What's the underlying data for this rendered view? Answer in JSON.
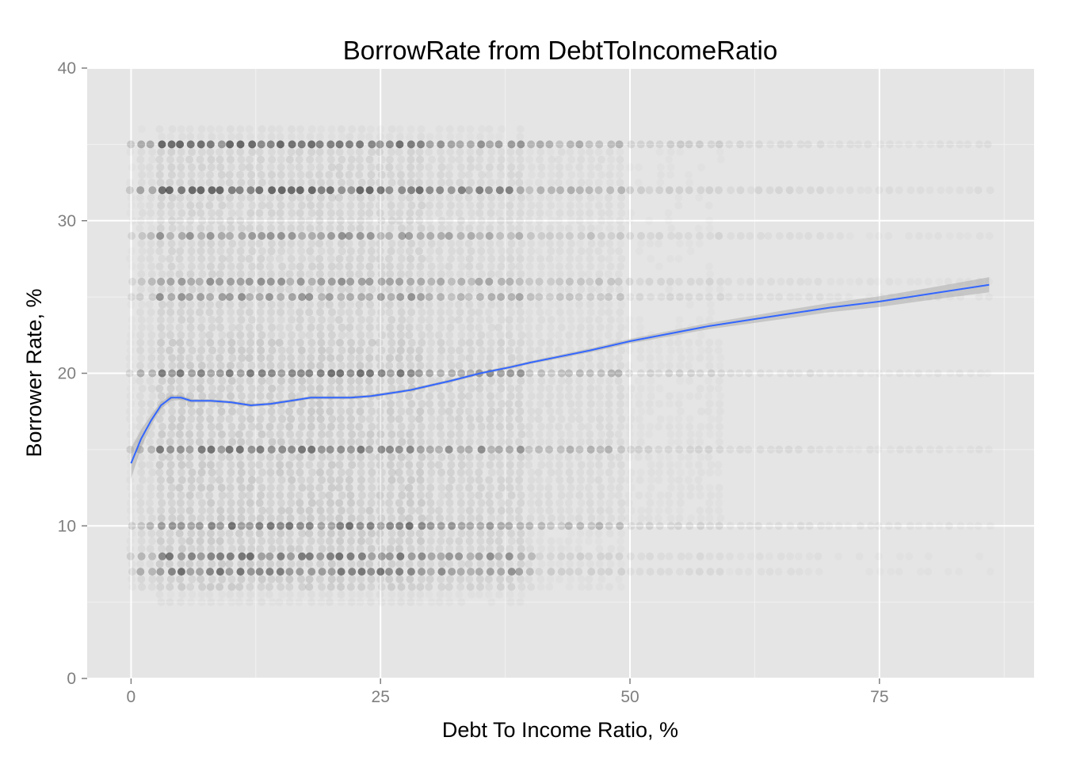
{
  "chart_data": {
    "type": "scatter",
    "title": "BorrowRate from DebtToIncomeRatio",
    "xlabel": "Debt To Income Ratio, %",
    "ylabel": "Borrower Rate, %",
    "xlim": [
      -4.4,
      90.5
    ],
    "ylim": [
      0,
      40
    ],
    "x_ticks": [
      0,
      25,
      50,
      75
    ],
    "y_ticks": [
      0,
      10,
      20,
      30,
      40
    ],
    "x_tick_labels": [
      "0",
      "25",
      "50",
      "75"
    ],
    "y_tick_labels": [
      "0",
      "10",
      "20",
      "30",
      "40"
    ],
    "grid": true,
    "panel_background": "#e5e5e5",
    "point_color": "#000000",
    "point_alpha": 0.03,
    "smooth_color": "#3366ff",
    "ribbon_color": "#999999",
    "scatter_density": {
      "description_units": "counts of loans per DebtToIncomeRatio x BorrowerRate cell (approximate relative density)",
      "x_range": [
        0,
        86
      ],
      "y_range": [
        5,
        36
      ],
      "dense_rate_bands": [
        35,
        31.9,
        29,
        26,
        25,
        20,
        15,
        10,
        8,
        7
      ]
    },
    "smooth_line": {
      "x": [
        0,
        1,
        2,
        3,
        4,
        5,
        6,
        8,
        10,
        12,
        14,
        16,
        18,
        20,
        22,
        24,
        26,
        28,
        30,
        32,
        35,
        38,
        40,
        43,
        46,
        50,
        54,
        58,
        62,
        66,
        70,
        75,
        80,
        86
      ],
      "y": [
        14.1,
        15.7,
        16.9,
        17.9,
        18.4,
        18.4,
        18.2,
        18.2,
        18.1,
        17.9,
        18.0,
        18.2,
        18.4,
        18.4,
        18.4,
        18.5,
        18.7,
        18.9,
        19.2,
        19.5,
        20.0,
        20.4,
        20.7,
        21.1,
        21.5,
        22.1,
        22.6,
        23.1,
        23.5,
        23.9,
        24.3,
        24.7,
        25.2,
        25.8
      ],
      "se": [
        1.0,
        0.6,
        0.35,
        0.25,
        0.2,
        0.15,
        0.12,
        0.1,
        0.1,
        0.1,
        0.1,
        0.1,
        0.1,
        0.1,
        0.1,
        0.1,
        0.1,
        0.1,
        0.1,
        0.1,
        0.1,
        0.1,
        0.1,
        0.12,
        0.13,
        0.15,
        0.18,
        0.2,
        0.24,
        0.28,
        0.3,
        0.35,
        0.4,
        0.5
      ]
    }
  }
}
